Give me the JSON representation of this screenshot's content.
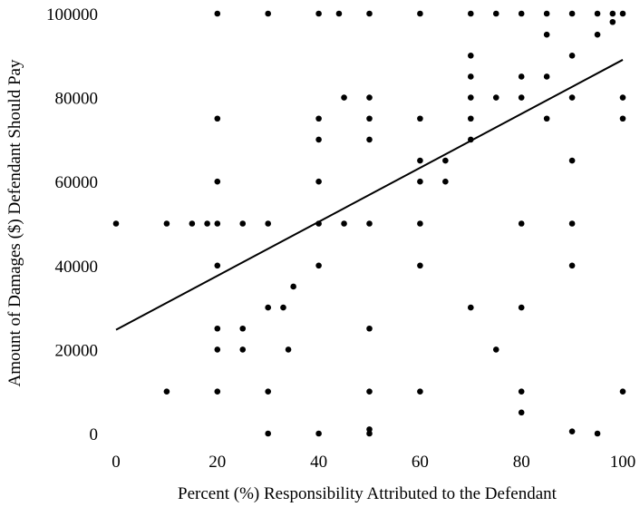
{
  "chart_data": {
    "type": "scatter",
    "title": "",
    "xlabel": "Percent (%) Responsibility Attributed to the Defendant",
    "ylabel": "Amount of Damages ($) Defendant Should Pay",
    "xlim": [
      0,
      100
    ],
    "ylim": [
      0,
      100000
    ],
    "x_ticks": [
      0,
      20,
      40,
      60,
      80,
      100
    ],
    "y_ticks": [
      0,
      20000,
      40000,
      60000,
      80000,
      100000
    ],
    "x_tick_labels": [
      "0",
      "20",
      "40",
      "60",
      "80",
      "100"
    ],
    "y_tick_labels": [
      "0",
      "20000",
      "40000",
      "60000",
      "80000",
      "100000"
    ],
    "grid": false,
    "legend": "none",
    "marker_color": "#000000",
    "trendline": {
      "type": "linear",
      "x": [
        0,
        100
      ],
      "y": [
        24700,
        89000
      ]
    },
    "points": [
      [
        0,
        50000
      ],
      [
        10,
        50000
      ],
      [
        10,
        10000
      ],
      [
        15,
        50000
      ],
      [
        18,
        50000
      ],
      [
        20,
        100000
      ],
      [
        20,
        75000
      ],
      [
        20,
        60000
      ],
      [
        20,
        50000
      ],
      [
        20,
        40000
      ],
      [
        20,
        25000
      ],
      [
        20,
        20000
      ],
      [
        20,
        10000
      ],
      [
        25,
        50000
      ],
      [
        25,
        25000
      ],
      [
        25,
        20000
      ],
      [
        30,
        100000
      ],
      [
        30,
        50000
      ],
      [
        30,
        30000
      ],
      [
        30,
        10000
      ],
      [
        30,
        0
      ],
      [
        33,
        30000
      ],
      [
        34,
        20000
      ],
      [
        35,
        35000
      ],
      [
        40,
        100000
      ],
      [
        40,
        75000
      ],
      [
        40,
        70000
      ],
      [
        40,
        60000
      ],
      [
        40,
        50000
      ],
      [
        40,
        40000
      ],
      [
        40,
        0
      ],
      [
        44,
        100000
      ],
      [
        45,
        80000
      ],
      [
        45,
        50000
      ],
      [
        50,
        100000
      ],
      [
        50,
        80000
      ],
      [
        50,
        75000
      ],
      [
        50,
        70000
      ],
      [
        50,
        50000
      ],
      [
        50,
        25000
      ],
      [
        50,
        10000
      ],
      [
        50,
        1000
      ],
      [
        50,
        0
      ],
      [
        60,
        100000
      ],
      [
        60,
        75000
      ],
      [
        60,
        65000
      ],
      [
        60,
        60000
      ],
      [
        60,
        50000
      ],
      [
        60,
        40000
      ],
      [
        60,
        10000
      ],
      [
        65,
        65000
      ],
      [
        65,
        60000
      ],
      [
        70,
        100000
      ],
      [
        70,
        90000
      ],
      [
        70,
        85000
      ],
      [
        70,
        80000
      ],
      [
        70,
        75000
      ],
      [
        70,
        70000
      ],
      [
        70,
        30000
      ],
      [
        75,
        100000
      ],
      [
        75,
        80000
      ],
      [
        75,
        20000
      ],
      [
        80,
        100000
      ],
      [
        80,
        85000
      ],
      [
        80,
        80000
      ],
      [
        80,
        50000
      ],
      [
        80,
        30000
      ],
      [
        80,
        10000
      ],
      [
        80,
        5000
      ],
      [
        85,
        100000
      ],
      [
        85,
        95000
      ],
      [
        85,
        85000
      ],
      [
        85,
        75000
      ],
      [
        90,
        100000
      ],
      [
        90,
        90000
      ],
      [
        90,
        80000
      ],
      [
        90,
        65000
      ],
      [
        90,
        50000
      ],
      [
        90,
        40000
      ],
      [
        90,
        500
      ],
      [
        95,
        100000
      ],
      [
        95,
        95000
      ],
      [
        95,
        0
      ],
      [
        98,
        98000
      ],
      [
        98,
        100000
      ],
      [
        100,
        100000
      ],
      [
        100,
        80000
      ],
      [
        100,
        75000
      ],
      [
        100,
        10000
      ]
    ]
  }
}
